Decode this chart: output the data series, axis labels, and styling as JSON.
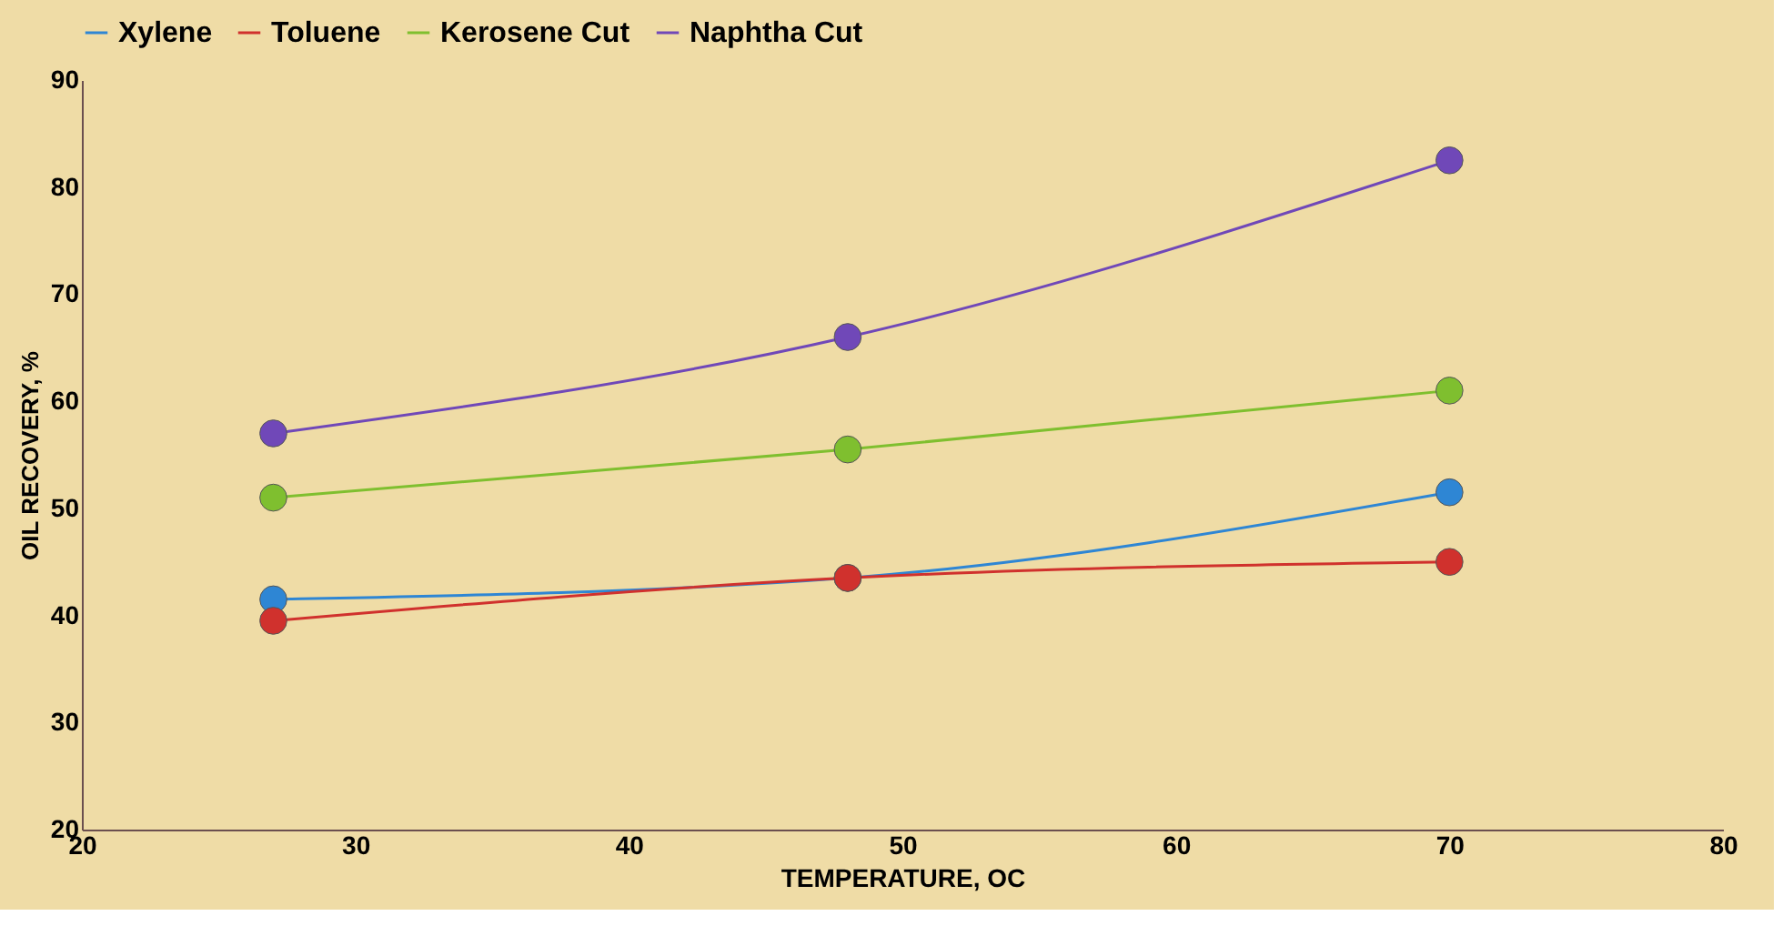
{
  "chart_data": {
    "type": "line",
    "xlabel": "TEMPERATURE, OC",
    "ylabel": "OIL RECOVERY, %",
    "x": [
      27,
      48,
      70
    ],
    "series": [
      {
        "name": "Xylene",
        "color": "#2e86d4",
        "values": [
          41.5,
          43.5,
          51.5
        ]
      },
      {
        "name": "Toluene",
        "color": "#d0312d",
        "values": [
          39.5,
          43.5,
          45
        ]
      },
      {
        "name": "Kerosene Cut",
        "color": "#7fbf2f",
        "values": [
          51,
          55.5,
          61
        ]
      },
      {
        "name": "Naphtha Cut",
        "color": "#7048b8",
        "values": [
          57,
          66,
          82.5
        ]
      }
    ],
    "xlim": [
      20,
      80
    ],
    "xticks": [
      20,
      30,
      40,
      50,
      60,
      70,
      80
    ],
    "ylim": [
      20,
      90
    ],
    "yticks": [
      20,
      30,
      40,
      50,
      60,
      70,
      80,
      90
    ],
    "legend": "top",
    "marker": "circle",
    "line_style": "solid",
    "grid": false
  }
}
